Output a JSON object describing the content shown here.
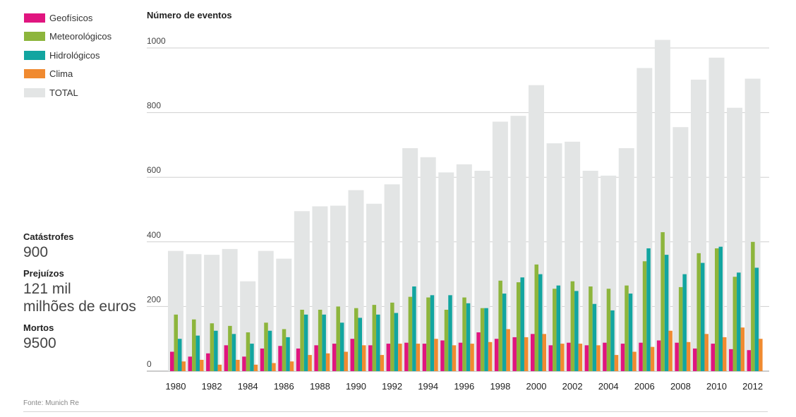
{
  "chart_data": {
    "type": "bar",
    "ylabel": "Número de eventos",
    "ylim": [
      0,
      1000
    ],
    "yticks": [
      0,
      200,
      400,
      600,
      800,
      1000
    ],
    "grid": "horizontal",
    "legend_position": "top-left",
    "x": [
      1980,
      1981,
      1982,
      1983,
      1984,
      1985,
      1986,
      1987,
      1988,
      1989,
      1990,
      1991,
      1992,
      1993,
      1994,
      1995,
      1996,
      1997,
      1998,
      1999,
      2000,
      2001,
      2002,
      2003,
      2004,
      2005,
      2006,
      2007,
      2008,
      2009,
      2010,
      2011,
      2012
    ],
    "xtick_labels": [
      "1980",
      "1982",
      "1984",
      "1986",
      "1988",
      "1990",
      "1992",
      "1994",
      "1996",
      "1998",
      "2000",
      "2002",
      "2004",
      "2006",
      "2008",
      "2010",
      "2012"
    ],
    "series": [
      {
        "name": "Geofísicos",
        "color": "#e0157f",
        "values": [
          60,
          45,
          55,
          80,
          45,
          70,
          78,
          70,
          80,
          85,
          100,
          80,
          85,
          88,
          85,
          95,
          88,
          120,
          100,
          105,
          115,
          80,
          88,
          80,
          88,
          85,
          88,
          95,
          88,
          70,
          85,
          68,
          65
        ]
      },
      {
        "name": "Meteorológicos",
        "color": "#8db53c",
        "values": [
          175,
          160,
          148,
          140,
          120,
          150,
          130,
          190,
          190,
          200,
          195,
          205,
          212,
          230,
          228,
          190,
          228,
          195,
          280,
          275,
          330,
          255,
          278,
          262,
          255,
          265,
          340,
          430,
          260,
          365,
          380,
          292,
          400
        ]
      },
      {
        "name": "Hidrológicos",
        "color": "#12a5a0",
        "values": [
          100,
          110,
          125,
          115,
          85,
          125,
          105,
          175,
          175,
          150,
          165,
          175,
          180,
          262,
          235,
          235,
          210,
          195,
          240,
          290,
          300,
          265,
          248,
          208,
          188,
          240,
          380,
          360,
          300,
          335,
          385,
          305,
          320
        ]
      },
      {
        "name": "Clima",
        "color": "#f08a30",
        "values": [
          30,
          35,
          20,
          35,
          20,
          25,
          30,
          50,
          55,
          60,
          80,
          50,
          85,
          85,
          100,
          80,
          85,
          90,
          130,
          105,
          115,
          85,
          85,
          80,
          50,
          60,
          75,
          125,
          90,
          115,
          105,
          135,
          100
        ]
      },
      {
        "name": "TOTAL",
        "color": "#e3e5e5",
        "values": [
          372,
          362,
          360,
          378,
          278,
          372,
          348,
          495,
          510,
          512,
          560,
          518,
          578,
          690,
          662,
          615,
          640,
          620,
          772,
          790,
          885,
          705,
          710,
          620,
          605,
          690,
          938,
          1025,
          755,
          902,
          970,
          815,
          905
        ]
      }
    ]
  },
  "stats": [
    {
      "label": "Catástrofes",
      "value": "900"
    },
    {
      "label": "Prejuízos",
      "value": "121 mil\nmilhões de euros"
    },
    {
      "label": "Mortos",
      "value": "9500"
    }
  ],
  "source": "Fonte: Munich Re"
}
